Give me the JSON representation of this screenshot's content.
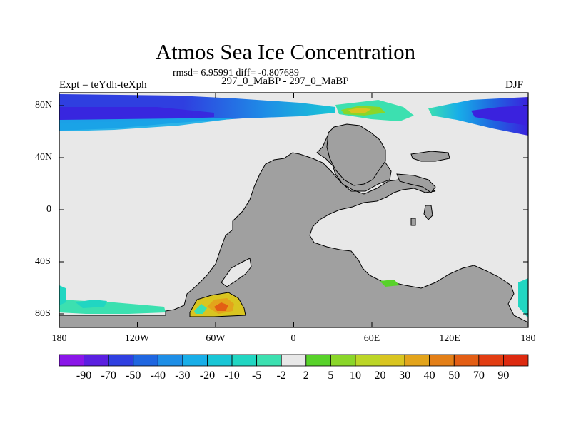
{
  "title": "Atmos Sea Ice Concentration",
  "stats": "rmsd= 6.95991 diff= -0.807689",
  "expt": "Expt = teYdh-teXph",
  "subtitle": "297_0_MaBP - 297_0_MaBP",
  "season": "DJF",
  "yaxis": [
    "80N",
    "40N",
    "0",
    "40S",
    "80S"
  ],
  "xaxis": [
    "180",
    "120W",
    "60W",
    "0",
    "60E",
    "120E",
    "180"
  ],
  "colorbar": {
    "labels": [
      "-90",
      "-70",
      "-50",
      "-40",
      "-30",
      "-20",
      "-10",
      "-5",
      "-2",
      "2",
      "5",
      "10",
      "20",
      "30",
      "40",
      "50",
      "70",
      "90"
    ],
    "colors": [
      "#8a16e8",
      "#5a1fe0",
      "#2f3fe0",
      "#1f66e0",
      "#1e8ee6",
      "#18aee8",
      "#19c6d6",
      "#21d6c2",
      "#3ce0b0",
      "#e8e8e8",
      "#58d22a",
      "#8ad629",
      "#bcd627",
      "#d9c520",
      "#e3a41b",
      "#e37f17",
      "#e35e14",
      "#e23d12",
      "#dd2a10"
    ]
  },
  "palette": {
    "land": "#a0a0a0",
    "ocean": "#e8e8e8"
  }
}
